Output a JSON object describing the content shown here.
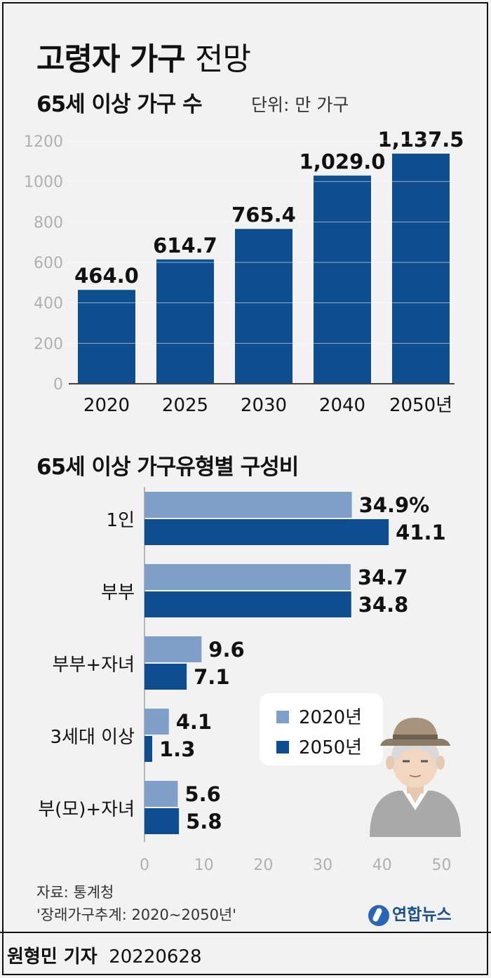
{
  "title": {
    "bold": "고령자 가구",
    "light": "전망"
  },
  "top_subtitle": "65세 이상 가구 수",
  "top_unit": "단위: 만 가구",
  "bottom_subtitle": "65세 이상 가구유형별 구성비",
  "legend": [
    {
      "label": "2020년",
      "color": "#7f9ec8"
    },
    {
      "label": "2050년",
      "color": "#0e4d8f"
    }
  ],
  "source": {
    "line1": "자료: 통계청",
    "line2": "'장래가구추계: 2020~2050년'"
  },
  "logo": {
    "text": "연합뉴스"
  },
  "footer": {
    "reporter": "원형민 기자",
    "date": "20220628"
  },
  "illustration": {
    "name": "elderly-man-icon"
  },
  "chart_data": [
    {
      "type": "bar",
      "title": "65세 이상 가구 수",
      "unit": "단위: 만 가구",
      "categories": [
        "2020",
        "2025",
        "2030",
        "2040",
        "2050년"
      ],
      "values": [
        464.0,
        614.7,
        765.4,
        1029.0,
        1137.5
      ],
      "value_labels": [
        "464.0",
        "614.7",
        "765.4",
        "1,029.0",
        "1,137.5"
      ],
      "ylim": [
        0,
        1200
      ],
      "yticks": [
        "0",
        "200",
        "400",
        "600",
        "800",
        "1000",
        "1200"
      ],
      "color": "#0e4d8f",
      "grid": true
    },
    {
      "type": "bar",
      "orientation": "horizontal",
      "title": "65세 이상 가구유형별 구성비",
      "categories": [
        "1인",
        "부부",
        "부부+자녀",
        "3세대 이상",
        "부(모)+자녀"
      ],
      "series": [
        {
          "name": "2020년",
          "values": [
            34.9,
            34.7,
            9.6,
            4.1,
            5.6
          ],
          "labels": [
            "34.9%",
            "34.7",
            "9.6",
            "4.1",
            "5.6"
          ],
          "color": "#7f9ec8"
        },
        {
          "name": "2050년",
          "values": [
            41.1,
            34.8,
            7.1,
            1.3,
            5.8
          ],
          "labels": [
            "41.1",
            "34.8",
            "7.1",
            "1.3",
            "5.8"
          ],
          "color": "#0e4d8f"
        }
      ],
      "xlim": [
        0,
        50
      ],
      "xticks": [
        "0",
        "10",
        "20",
        "30",
        "40",
        "50"
      ],
      "legend": "right"
    }
  ]
}
